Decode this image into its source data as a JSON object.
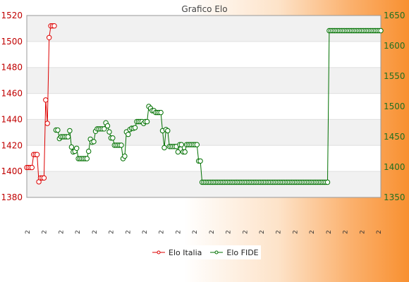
{
  "chart_data": {
    "type": "line",
    "title": "Grafico Elo",
    "y_left": {
      "ticks": [
        "1380",
        "1400",
        "1420",
        "1440",
        "1460",
        "1480",
        "1500",
        "1520"
      ],
      "range": [
        1380,
        1520
      ]
    },
    "y_right": {
      "ticks": [
        "1350",
        "1400",
        "1450",
        "1500",
        "1550",
        "1600",
        "1650"
      ],
      "range": [
        1350,
        1650
      ]
    },
    "grid": true,
    "legend_position": "bottom-center",
    "series": [
      {
        "name": "Elo Italia",
        "axis": "left",
        "color": "#dd0000",
        "points": [
          [
            1,
            1403
          ],
          [
            2,
            1403
          ],
          [
            3,
            1403
          ],
          [
            4,
            1403
          ],
          [
            5,
            1413
          ],
          [
            6,
            1413
          ],
          [
            7,
            1413
          ],
          [
            8,
            1392
          ],
          [
            9,
            1395
          ],
          [
            10,
            1395
          ],
          [
            11,
            1395
          ],
          [
            12,
            1455
          ],
          [
            13,
            1437
          ],
          [
            14,
            1503
          ],
          [
            15,
            1512
          ],
          [
            16,
            1512
          ],
          [
            17,
            1512
          ]
        ]
      },
      {
        "name": "Elo FIDE",
        "axis": "right",
        "color": "#007000",
        "points": [
          [
            18,
            1461
          ],
          [
            19,
            1461
          ],
          [
            20,
            1447
          ],
          [
            21,
            1450
          ],
          [
            22,
            1450
          ],
          [
            23,
            1450
          ],
          [
            24,
            1450
          ],
          [
            25,
            1450
          ],
          [
            26,
            1460
          ],
          [
            27,
            1433
          ],
          [
            28,
            1425
          ],
          [
            29,
            1426
          ],
          [
            30,
            1431
          ],
          [
            31,
            1414
          ],
          [
            32,
            1414
          ],
          [
            33,
            1414
          ],
          [
            34,
            1414
          ],
          [
            35,
            1414
          ],
          [
            36,
            1414
          ],
          [
            37,
            1426
          ],
          [
            38,
            1446
          ],
          [
            39,
            1441
          ],
          [
            40,
            1442
          ],
          [
            41,
            1459
          ],
          [
            42,
            1463
          ],
          [
            43,
            1463
          ],
          [
            44,
            1463
          ],
          [
            45,
            1463
          ],
          [
            46,
            1463
          ],
          [
            47,
            1473
          ],
          [
            48,
            1468
          ],
          [
            49,
            1458
          ],
          [
            50,
            1448
          ],
          [
            51,
            1448
          ],
          [
            52,
            1436
          ],
          [
            53,
            1436
          ],
          [
            54,
            1436
          ],
          [
            55,
            1436
          ],
          [
            56,
            1436
          ],
          [
            57,
            1414
          ],
          [
            58,
            1418
          ],
          [
            59,
            1458
          ],
          [
            60,
            1454
          ],
          [
            61,
            1462
          ],
          [
            62,
            1464
          ],
          [
            63,
            1464
          ],
          [
            64,
            1465
          ],
          [
            65,
            1475
          ],
          [
            66,
            1475
          ],
          [
            67,
            1475
          ],
          [
            68,
            1475
          ],
          [
            69,
            1472
          ],
          [
            70,
            1475
          ],
          [
            71,
            1475
          ],
          [
            72,
            1500
          ],
          [
            73,
            1497
          ],
          [
            74,
            1493
          ],
          [
            75,
            1493
          ],
          [
            76,
            1490
          ],
          [
            77,
            1490
          ],
          [
            78,
            1490
          ],
          [
            79,
            1490
          ],
          [
            80,
            1460
          ],
          [
            81,
            1432
          ],
          [
            82,
            1462
          ],
          [
            83,
            1460
          ],
          [
            84,
            1434
          ],
          [
            85,
            1434
          ],
          [
            86,
            1434
          ],
          [
            87,
            1434
          ],
          [
            88,
            1434
          ],
          [
            89,
            1425
          ],
          [
            90,
            1437
          ],
          [
            91,
            1437
          ],
          [
            92,
            1425
          ],
          [
            93,
            1425
          ],
          [
            94,
            1437
          ],
          [
            95,
            1437
          ],
          [
            96,
            1437
          ],
          [
            97,
            1437
          ],
          [
            98,
            1437
          ],
          [
            99,
            1437
          ],
          [
            100,
            1437
          ],
          [
            101,
            1410
          ],
          [
            102,
            1410
          ],
          [
            103,
            1375
          ],
          [
            104,
            1375
          ],
          [
            105,
            1375
          ],
          [
            106,
            1375
          ],
          [
            107,
            1375
          ],
          [
            108,
            1375
          ],
          [
            109,
            1375
          ],
          [
            110,
            1375
          ],
          [
            111,
            1375
          ],
          [
            112,
            1375
          ],
          [
            113,
            1375
          ],
          [
            114,
            1375
          ],
          [
            115,
            1375
          ],
          [
            116,
            1375
          ],
          [
            117,
            1375
          ],
          [
            118,
            1375
          ],
          [
            119,
            1375
          ],
          [
            120,
            1375
          ],
          [
            121,
            1375
          ],
          [
            122,
            1375
          ],
          [
            123,
            1375
          ],
          [
            124,
            1375
          ],
          [
            125,
            1375
          ],
          [
            126,
            1375
          ],
          [
            127,
            1375
          ],
          [
            128,
            1375
          ],
          [
            129,
            1375
          ],
          [
            130,
            1375
          ],
          [
            131,
            1375
          ],
          [
            132,
            1375
          ],
          [
            133,
            1375
          ],
          [
            134,
            1375
          ],
          [
            135,
            1375
          ],
          [
            136,
            1375
          ],
          [
            137,
            1375
          ],
          [
            138,
            1375
          ],
          [
            139,
            1375
          ],
          [
            140,
            1375
          ],
          [
            141,
            1375
          ],
          [
            142,
            1375
          ],
          [
            143,
            1375
          ],
          [
            144,
            1375
          ],
          [
            145,
            1375
          ],
          [
            146,
            1375
          ],
          [
            147,
            1375
          ],
          [
            148,
            1375
          ],
          [
            149,
            1375
          ],
          [
            150,
            1375
          ],
          [
            151,
            1375
          ],
          [
            152,
            1375
          ],
          [
            153,
            1375
          ],
          [
            154,
            1375
          ],
          [
            155,
            1375
          ],
          [
            156,
            1375
          ],
          [
            157,
            1375
          ],
          [
            158,
            1375
          ],
          [
            159,
            1375
          ],
          [
            160,
            1375
          ],
          [
            161,
            1375
          ],
          [
            162,
            1375
          ],
          [
            163,
            1375
          ],
          [
            164,
            1375
          ],
          [
            165,
            1375
          ],
          [
            166,
            1375
          ],
          [
            167,
            1375
          ],
          [
            168,
            1375
          ],
          [
            169,
            1375
          ],
          [
            170,
            1375
          ],
          [
            171,
            1375
          ],
          [
            172,
            1375
          ],
          [
            173,
            1375
          ],
          [
            174,
            1375
          ],
          [
            175,
            1375
          ],
          [
            176,
            1375
          ],
          [
            177,
            1625
          ],
          [
            178,
            1625
          ],
          [
            179,
            1625
          ],
          [
            180,
            1625
          ],
          [
            181,
            1625
          ],
          [
            182,
            1625
          ],
          [
            183,
            1625
          ],
          [
            184,
            1625
          ],
          [
            185,
            1625
          ],
          [
            186,
            1625
          ],
          [
            187,
            1625
          ],
          [
            188,
            1625
          ],
          [
            189,
            1625
          ],
          [
            190,
            1625
          ],
          [
            191,
            1625
          ],
          [
            192,
            1625
          ],
          [
            193,
            1625
          ],
          [
            194,
            1625
          ],
          [
            195,
            1625
          ],
          [
            196,
            1625
          ],
          [
            197,
            1625
          ],
          [
            198,
            1625
          ],
          [
            199,
            1625
          ],
          [
            200,
            1625
          ],
          [
            201,
            1625
          ],
          [
            202,
            1625
          ],
          [
            203,
            1625
          ],
          [
            204,
            1625
          ],
          [
            205,
            1625
          ],
          [
            206,
            1625
          ],
          [
            207,
            1625
          ]
        ]
      }
    ],
    "x_labels": [
      "2",
      "2",
      "2",
      "2",
      "2",
      "2",
      "2",
      "2",
      "2",
      "2",
      "2",
      "2",
      "2",
      "2",
      "2",
      "2",
      "2",
      "2",
      "2",
      "2",
      "2",
      "2"
    ]
  },
  "legend": {
    "elo_italia": "Elo Italia",
    "elo_fide": "Elo FIDE"
  }
}
